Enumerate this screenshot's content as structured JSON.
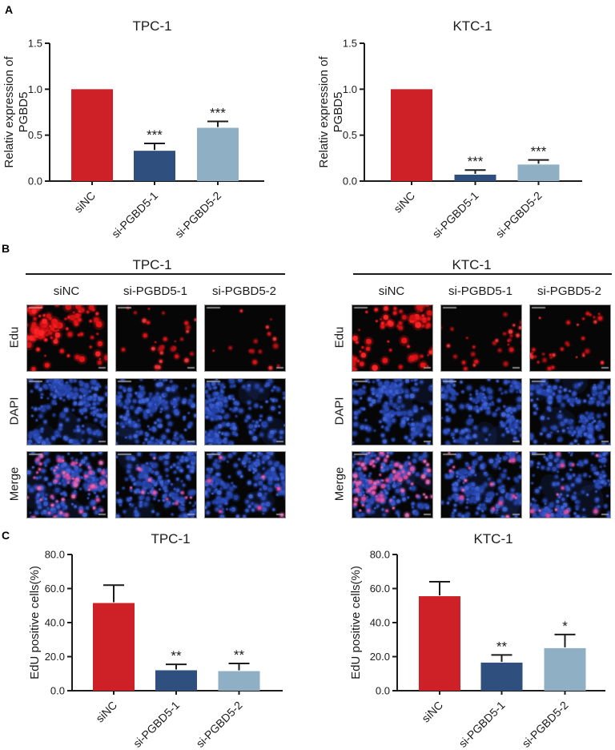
{
  "figure": {
    "panel_labels": {
      "a": "A",
      "b": "B",
      "c": "C"
    }
  },
  "colors": {
    "red": "#ce2127",
    "dark_blue": "#2f4f7e",
    "light_blue": "#8fafc5",
    "axis": "#1b1b1b",
    "edu_dot": "#ee1c20",
    "dapi_dot": "#2d4fb4",
    "merge_pink": "#d44f9f"
  },
  "chart_data": [
    {
      "id": "a-tpc1",
      "type": "bar",
      "panel": "A",
      "title": "TPC-1",
      "ylabel_lines": [
        "Relativ expression of",
        "PGBD5"
      ],
      "ylim": [
        0,
        1.5
      ],
      "ytick_values": [
        0,
        0.5,
        1.0,
        1.5
      ],
      "ytick_labels": [
        "0.0",
        "0.5",
        "1.0",
        "1.5"
      ],
      "categories": [
        "siNC",
        "si-PGBD5-1",
        "si-PGBD5-2"
      ],
      "values": [
        1.0,
        0.33,
        0.58
      ],
      "errors": [
        0,
        0.08,
        0.07
      ],
      "significance": [
        "",
        "***",
        "***"
      ],
      "bar_colors": [
        "red",
        "dark_blue",
        "light_blue"
      ],
      "grid": false,
      "legend": "none"
    },
    {
      "id": "a-ktc1",
      "type": "bar",
      "panel": "A",
      "title": "KTC-1",
      "ylabel_lines": [
        "Relativ expression of",
        "PGBD5"
      ],
      "ylim": [
        0,
        1.5
      ],
      "ytick_values": [
        0,
        0.5,
        1.0,
        1.5
      ],
      "ytick_labels": [
        "0.0",
        "0.5",
        "1.0",
        "1.5"
      ],
      "categories": [
        "siNC",
        "si-PGBD5-1",
        "si-PGBD5-2"
      ],
      "values": [
        1.0,
        0.07,
        0.18
      ],
      "errors": [
        0,
        0.05,
        0.05
      ],
      "significance": [
        "",
        "***",
        "***"
      ],
      "bar_colors": [
        "red",
        "dark_blue",
        "light_blue"
      ],
      "grid": false,
      "legend": "none"
    },
    {
      "id": "c-tpc1",
      "type": "bar",
      "panel": "C",
      "title": "TPC-1",
      "ylabel_lines": [
        "EdU positive cells(%)"
      ],
      "ylim": [
        0,
        80
      ],
      "ytick_values": [
        0,
        20,
        40,
        60,
        80
      ],
      "ytick_labels": [
        "0.0",
        "20.0",
        "40.0",
        "60.0",
        "80.0"
      ],
      "categories": [
        "siNC",
        "si-PGBD5-1",
        "si-PGBD5-2"
      ],
      "values": [
        51.5,
        12.0,
        11.5
      ],
      "errors": [
        10.5,
        3.5,
        4.5
      ],
      "significance": [
        "",
        "**",
        "**"
      ],
      "bar_colors": [
        "red",
        "dark_blue",
        "light_blue"
      ],
      "grid": false,
      "legend": "none"
    },
    {
      "id": "c-ktc1",
      "type": "bar",
      "panel": "C",
      "title": "KTC-1",
      "ylabel_lines": [
        "EdU positive cells(%)"
      ],
      "ylim": [
        0,
        80
      ],
      "ytick_values": [
        0,
        20,
        40,
        60,
        80
      ],
      "ytick_labels": [
        "0.0",
        "20.0",
        "40.0",
        "60.0",
        "80.0"
      ],
      "categories": [
        "siNC",
        "si-PGBD5-1",
        "si-PGBD5-2"
      ],
      "values": [
        55.5,
        16.5,
        25.0
      ],
      "errors": [
        8.5,
        4.5,
        8.0
      ],
      "significance": [
        "",
        "**",
        "*"
      ],
      "bar_colors": [
        "red",
        "dark_blue",
        "light_blue"
      ],
      "grid": false,
      "legend": "none"
    }
  ],
  "panel_b": {
    "groups": [
      {
        "id": "tpc1",
        "title": "TPC-1",
        "columns": [
          "siNC",
          "si-PGBD5-1",
          "si-PGBD5-2"
        ],
        "rows": [
          {
            "label": "Edu",
            "type": "edu",
            "red_counts": [
              115,
              32,
              15
            ]
          },
          {
            "label": "DAPI",
            "type": "dapi",
            "blue_counts": [
              240,
              215,
              225
            ]
          },
          {
            "label": "Merge",
            "type": "merge",
            "blue_counts": [
              225,
              215,
              220
            ],
            "pink_counts": [
              60,
              13,
              10
            ]
          }
        ]
      },
      {
        "id": "ktc1",
        "title": "KTC-1",
        "columns": [
          "siNC",
          "si-PGBD5-1",
          "si-PGBD5-2"
        ],
        "rows": [
          {
            "label": "Edu",
            "type": "edu",
            "red_counts": [
              90,
              30,
              32
            ]
          },
          {
            "label": "DAPI",
            "type": "dapi",
            "blue_counts": [
              205,
              195,
              190
            ]
          },
          {
            "label": "Merge",
            "type": "merge",
            "blue_counts": [
              205,
              195,
              190
            ],
            "pink_counts": [
              72,
              18,
              16
            ]
          }
        ]
      }
    ]
  }
}
